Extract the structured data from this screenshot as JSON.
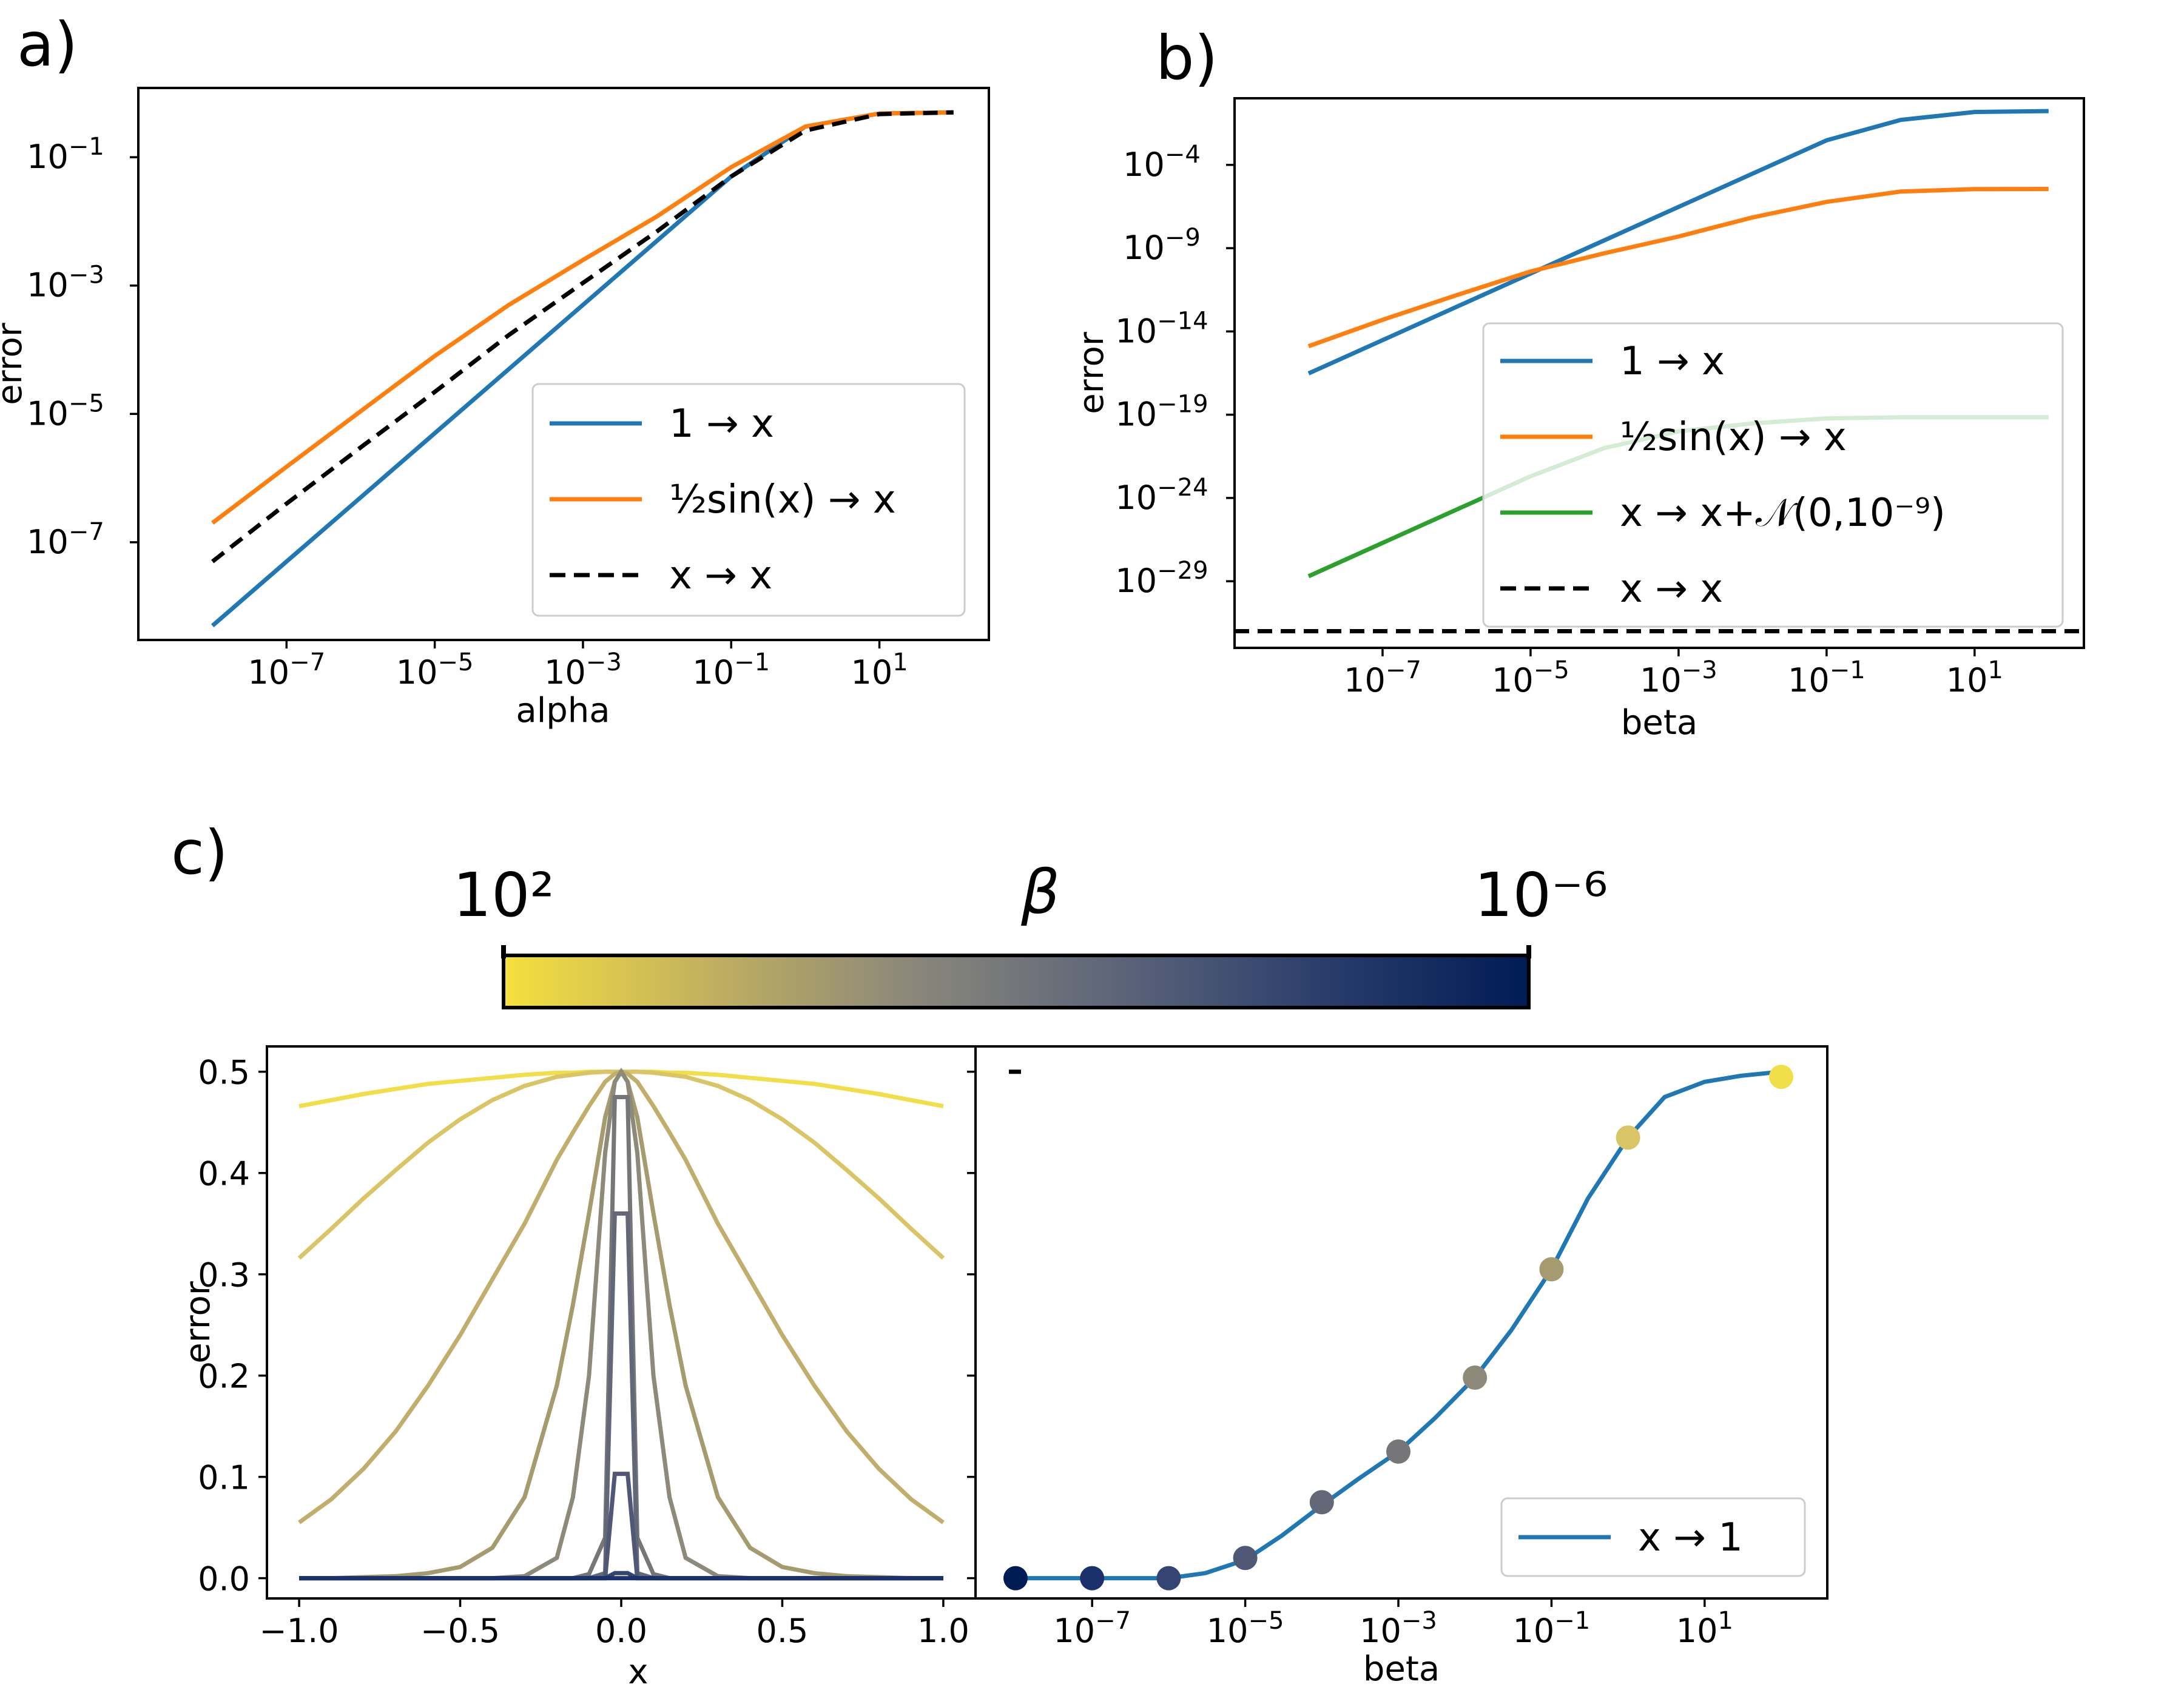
{
  "panels": {
    "a": {
      "letter": "a)"
    },
    "b": {
      "letter": "b)"
    },
    "c": {
      "letter": "c)"
    }
  },
  "colorbar": {
    "symbol": "β",
    "left_label": "10²",
    "right_label": "10⁻⁶",
    "colors": [
      "#f5e03d",
      "#c2b05f",
      "#8a877a",
      "#5c6479",
      "#2a3d6b",
      "#001c55"
    ]
  },
  "chart_data": [
    {
      "id": "a",
      "type": "line",
      "xlabel": "alpha",
      "ylabel": "error",
      "xscale": "log",
      "yscale": "log",
      "xlim": [
        1e-09,
        300
      ],
      "ylim": [
        3e-09,
        1.2
      ],
      "xticks": [
        {
          "value": 1e-07,
          "base": "10",
          "exp": "−7"
        },
        {
          "value": 1e-05,
          "base": "10",
          "exp": "−5"
        },
        {
          "value": 0.001,
          "base": "10",
          "exp": "−3"
        },
        {
          "value": 0.1,
          "base": "10",
          "exp": "−1"
        },
        {
          "value": 10,
          "base": "10",
          "exp": "1"
        }
      ],
      "yticks": [
        {
          "value": 1e-07,
          "base": "10",
          "exp": "−7"
        },
        {
          "value": 1e-05,
          "base": "10",
          "exp": "−5"
        },
        {
          "value": 0.001,
          "base": "10",
          "exp": "−3"
        },
        {
          "value": 0.1,
          "base": "10",
          "exp": "−1"
        }
      ],
      "legend_position": "lower-right",
      "series": [
        {
          "name": "1 → x",
          "color": "#1f77b4",
          "dash": "solid",
          "x": [
            1e-08,
            1e-07,
            1e-06,
            1e-05,
            0.0001,
            0.001,
            0.01,
            0.1,
            1,
            10,
            100
          ],
          "y": [
            5e-09,
            5e-08,
            5e-07,
            5e-06,
            5e-05,
            0.0005,
            0.005,
            0.05,
            0.3,
            0.48,
            0.5
          ]
        },
        {
          "name": "½sin(x) → x",
          "color": "#ff7f0e",
          "dash": "solid",
          "x": [
            1e-08,
            1e-07,
            1e-06,
            1e-05,
            0.0001,
            0.001,
            0.01,
            0.1,
            1,
            10,
            100
          ],
          "y": [
            2e-07,
            1.5e-06,
            1.1e-05,
            8e-05,
            0.0005,
            0.0025,
            0.012,
            0.07,
            0.3,
            0.48,
            0.5
          ]
        },
        {
          "name": "x → x",
          "color": "#000000",
          "dash": "dashed",
          "x": [
            1e-08,
            1e-07,
            1e-06,
            1e-05,
            0.0001,
            0.001,
            0.01,
            0.1,
            1,
            10,
            100
          ],
          "y": [
            5e-08,
            4e-07,
            3e-06,
            2.2e-05,
            0.00017,
            0.0011,
            0.007,
            0.05,
            0.26,
            0.47,
            0.5
          ]
        }
      ]
    },
    {
      "id": "b",
      "type": "line",
      "xlabel": "beta",
      "ylabel": "error",
      "xscale": "log",
      "yscale": "log",
      "xlim": [
        1e-09,
        300
      ],
      "ylim": [
        1e-33,
        1.0
      ],
      "xticks": [
        {
          "value": 1e-07,
          "base": "10",
          "exp": "−7"
        },
        {
          "value": 1e-05,
          "base": "10",
          "exp": "−5"
        },
        {
          "value": 0.001,
          "base": "10",
          "exp": "−3"
        },
        {
          "value": 0.1,
          "base": "10",
          "exp": "−1"
        },
        {
          "value": 10,
          "base": "10",
          "exp": "1"
        }
      ],
      "yticks": [
        {
          "value": 0.0001,
          "base": "10",
          "exp": "−4"
        },
        {
          "value": 1e-09,
          "base": "10",
          "exp": "−9"
        },
        {
          "value": 1e-14,
          "base": "10",
          "exp": "−14"
        },
        {
          "value": 1e-19,
          "base": "10",
          "exp": "−19"
        },
        {
          "value": 1e-24,
          "base": "10",
          "exp": "−24"
        },
        {
          "value": 1e-29,
          "base": "10",
          "exp": "−29"
        }
      ],
      "legend_position": "center-right",
      "series": [
        {
          "name": "1 → x",
          "color": "#1f77b4",
          "dash": "solid",
          "x": [
            1e-08,
            1e-07,
            1e-06,
            1e-05,
            0.0001,
            0.001,
            0.01,
            0.1,
            1,
            10,
            100
          ],
          "y": [
            3e-17,
            3e-15,
            3e-13,
            3e-11,
            3e-09,
            3e-07,
            3e-05,
            0.003,
            0.05,
            0.15,
            0.17
          ]
        },
        {
          "name": "½sin(x) → x",
          "color": "#ff7f0e",
          "dash": "solid",
          "x": [
            1e-08,
            1e-07,
            1e-06,
            1e-05,
            0.0001,
            0.001,
            0.01,
            0.1,
            1,
            10,
            100
          ],
          "y": [
            1.3e-15,
            5e-14,
            1.5e-12,
            4e-11,
            5e-10,
            5e-09,
            7e-08,
            6e-07,
            2.5e-06,
            3.5e-06,
            3.6e-06
          ]
        },
        {
          "name": "x → x+𝒩(0,10⁻⁹)",
          "color": "#2ca02c",
          "dash": "solid",
          "x": [
            1e-08,
            1e-07,
            1e-06,
            1e-05,
            0.0001,
            0.001,
            0.01,
            0.1,
            1,
            10,
            100
          ],
          "y": [
            2e-29,
            2e-27,
            2e-25,
            2e-23,
            1e-21,
            1e-20,
            3e-20,
            6e-20,
            7e-20,
            7e-20,
            7e-20
          ]
        },
        {
          "name": "x → x",
          "color": "#000000",
          "dash": "dashed",
          "x": [
            1e-09,
            300
          ],
          "y": [
            1e-32,
            1e-32
          ]
        }
      ]
    },
    {
      "id": "c-left",
      "type": "line",
      "xlabel": "x",
      "ylabel": "error",
      "xlim": [
        -1.1,
        1.1
      ],
      "ylim": [
        -0.02,
        0.525
      ],
      "xticks": [
        {
          "value": -1.0,
          "label": "−1.0"
        },
        {
          "value": -0.5,
          "label": "−0.5"
        },
        {
          "value": 0.0,
          "label": "0.0"
        },
        {
          "value": 0.5,
          "label": "0.5"
        },
        {
          "value": 1.0,
          "label": "1.0"
        }
      ],
      "yticks": [
        {
          "value": 0.0,
          "label": "0.0"
        },
        {
          "value": 0.1,
          "label": "0.1"
        },
        {
          "value": 0.2,
          "label": "0.2"
        },
        {
          "value": 0.3,
          "label": "0.3"
        },
        {
          "value": 0.4,
          "label": "0.4"
        },
        {
          "value": 0.5,
          "label": "0.5"
        }
      ],
      "x": [
        -1.0,
        -0.9,
        -0.8,
        -0.7,
        -0.6,
        -0.5,
        -0.4,
        -0.3,
        -0.2,
        -0.15,
        -0.1,
        -0.05,
        -0.02,
        0.0,
        0.02,
        0.05,
        0.1,
        0.15,
        0.2,
        0.3,
        0.4,
        0.5,
        0.6,
        0.7,
        0.8,
        0.9,
        1.0
      ],
      "series": [
        {
          "color": "#f1df49",
          "y": [
            0.466,
            0.472,
            0.478,
            0.483,
            0.488,
            0.491,
            0.494,
            0.497,
            0.499,
            0.499,
            0.5,
            0.5,
            0.5,
            0.5,
            0.5,
            0.5,
            0.5,
            0.499,
            0.499,
            0.497,
            0.494,
            0.491,
            0.488,
            0.483,
            0.478,
            0.472,
            0.466
          ]
        },
        {
          "color": "#d9c566",
          "y": [
            0.316,
            0.345,
            0.375,
            0.403,
            0.43,
            0.453,
            0.472,
            0.486,
            0.495,
            0.497,
            0.499,
            0.5,
            0.5,
            0.5,
            0.5,
            0.5,
            0.499,
            0.497,
            0.495,
            0.486,
            0.472,
            0.453,
            0.43,
            0.403,
            0.375,
            0.345,
            0.316
          ]
        },
        {
          "color": "#c2ae6c",
          "y": [
            0.055,
            0.078,
            0.108,
            0.145,
            0.19,
            0.24,
            0.295,
            0.35,
            0.413,
            0.44,
            0.466,
            0.49,
            0.498,
            0.5,
            0.498,
            0.49,
            0.466,
            0.44,
            0.413,
            0.35,
            0.295,
            0.24,
            0.19,
            0.145,
            0.108,
            0.078,
            0.055
          ]
        },
        {
          "color": "#a69a6f",
          "y": [
            0.0,
            0.0,
            0.001,
            0.002,
            0.005,
            0.011,
            0.03,
            0.08,
            0.19,
            0.27,
            0.36,
            0.455,
            0.49,
            0.5,
            0.49,
            0.455,
            0.36,
            0.27,
            0.19,
            0.08,
            0.03,
            0.011,
            0.005,
            0.002,
            0.001,
            0.0,
            0.0
          ]
        },
        {
          "color": "#8d8a7a",
          "y": [
            0.0,
            0.0,
            0.0,
            0.0,
            0.0,
            0.0,
            0.0,
            0.002,
            0.02,
            0.08,
            0.2,
            0.42,
            0.49,
            0.5,
            0.49,
            0.42,
            0.2,
            0.08,
            0.02,
            0.002,
            0.0,
            0.0,
            0.0,
            0.0,
            0.0,
            0.0,
            0.0
          ]
        },
        {
          "color": "#767679",
          "y": [
            0.0,
            0.0,
            0.0,
            0.0,
            0.0,
            0.0,
            0.0,
            0.0,
            0.0,
            0.0,
            0.004,
            0.04,
            0.475,
            0.475,
            0.475,
            0.04,
            0.004,
            0.0,
            0.0,
            0.0,
            0.0,
            0.0,
            0.0,
            0.0,
            0.0,
            0.0,
            0.0
          ]
        },
        {
          "color": "#626878",
          "y": [
            0.0,
            0.0,
            0.0,
            0.0,
            0.0,
            0.0,
            0.0,
            0.0,
            0.0,
            0.0,
            0.0,
            0.005,
            0.36,
            0.36,
            0.36,
            0.005,
            0.0,
            0.0,
            0.0,
            0.0,
            0.0,
            0.0,
            0.0,
            0.0,
            0.0,
            0.0,
            0.0
          ]
        },
        {
          "color": "#4f5877",
          "y": [
            0.0,
            0.0,
            0.0,
            0.0,
            0.0,
            0.0,
            0.0,
            0.0,
            0.0,
            0.0,
            0.0,
            0.0,
            0.103,
            0.103,
            0.103,
            0.0,
            0.0,
            0.0,
            0.0,
            0.0,
            0.0,
            0.0,
            0.0,
            0.0,
            0.0,
            0.0,
            0.0
          ]
        },
        {
          "color": "#344574",
          "y": [
            0.0,
            0.0,
            0.0,
            0.0,
            0.0,
            0.0,
            0.0,
            0.0,
            0.0,
            0.0,
            0.0,
            0.0,
            0.005,
            0.005,
            0.005,
            0.0,
            0.0,
            0.0,
            0.0,
            0.0,
            0.0,
            0.0,
            0.0,
            0.0,
            0.0,
            0.0,
            0.0
          ]
        },
        {
          "color": "#1a316b",
          "y": [
            0.0,
            0.0,
            0.0,
            0.0,
            0.0,
            0.0,
            0.0,
            0.0,
            0.0,
            0.0,
            0.0,
            0.0,
            0.0,
            0.0,
            0.0,
            0.0,
            0.0,
            0.0,
            0.0,
            0.0,
            0.0,
            0.0,
            0.0,
            0.0,
            0.0,
            0.0,
            0.0
          ]
        }
      ]
    },
    {
      "id": "c-right",
      "type": "line+scatter",
      "xlabel": "beta",
      "xscale": "log",
      "xlim": [
        3e-09,
        400
      ],
      "ylim": [
        -0.02,
        0.525
      ],
      "xticks": [
        {
          "value": 1e-07,
          "base": "10",
          "exp": "−7"
        },
        {
          "value": 1e-05,
          "base": "10",
          "exp": "−5"
        },
        {
          "value": 0.001,
          "base": "10",
          "exp": "−3"
        },
        {
          "value": 0.1,
          "base": "10",
          "exp": "−1"
        },
        {
          "value": 10,
          "base": "10",
          "exp": "1"
        }
      ],
      "ytick_values": [
        0.0,
        0.1,
        0.2,
        0.3,
        0.4,
        0.5
      ],
      "legend_position": "lower-right",
      "line": {
        "name": "x → 1",
        "color": "#1f77b4",
        "x": [
          1e-08,
          1e-07,
          1e-06,
          3e-06,
          1e-05,
          3e-05,
          0.0001,
          0.0003,
          0.001,
          0.003,
          0.01,
          0.03,
          0.1,
          0.3,
          1,
          3,
          10,
          30,
          100
        ],
        "y": [
          0.0,
          0.0,
          0.0,
          0.005,
          0.018,
          0.042,
          0.072,
          0.098,
          0.125,
          0.158,
          0.198,
          0.245,
          0.305,
          0.375,
          0.435,
          0.475,
          0.49,
          0.496,
          0.5
        ]
      },
      "points": [
        {
          "x": 1e-08,
          "y": 0.0,
          "color": "#001c55"
        },
        {
          "x": 1e-07,
          "y": 0.0,
          "color": "#1a316b"
        },
        {
          "x": 1e-06,
          "y": 0.0,
          "color": "#344574"
        },
        {
          "x": 1e-05,
          "y": 0.02,
          "color": "#4f5877"
        },
        {
          "x": 0.0001,
          "y": 0.075,
          "color": "#626878"
        },
        {
          "x": 0.001,
          "y": 0.125,
          "color": "#767679"
        },
        {
          "x": 0.01,
          "y": 0.198,
          "color": "#8d8a7a"
        },
        {
          "x": 0.1,
          "y": 0.305,
          "color": "#a69a6f"
        },
        {
          "x": 1,
          "y": 0.435,
          "color": "#d9c566"
        },
        {
          "x": 100,
          "y": 0.495,
          "color": "#f1df49"
        }
      ]
    }
  ]
}
